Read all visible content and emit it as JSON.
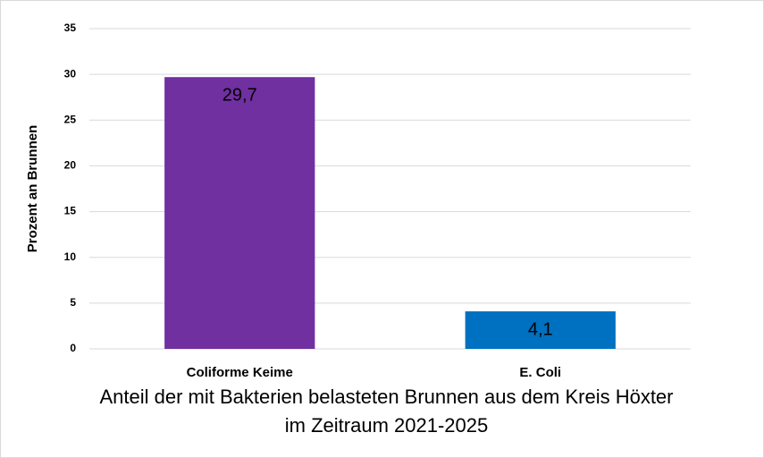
{
  "chart_data": {
    "type": "bar",
    "title": "Anteil der mit Bakterien belasteten Brunnen aus dem Kreis Höxter im Zeitraum 2021-2025",
    "ylabel": "Prozent an Brunnen",
    "categories": [
      "Coliforme Keime",
      "E. Coli"
    ],
    "values": [
      29.7,
      4.1
    ],
    "value_labels": [
      "29,7",
      "4,1"
    ],
    "colors": [
      "#7030a0",
      "#0070c0"
    ],
    "ylim": [
      0,
      35
    ],
    "yticks": [
      0,
      5,
      10,
      15,
      20,
      25,
      30,
      35
    ],
    "grid": true
  }
}
